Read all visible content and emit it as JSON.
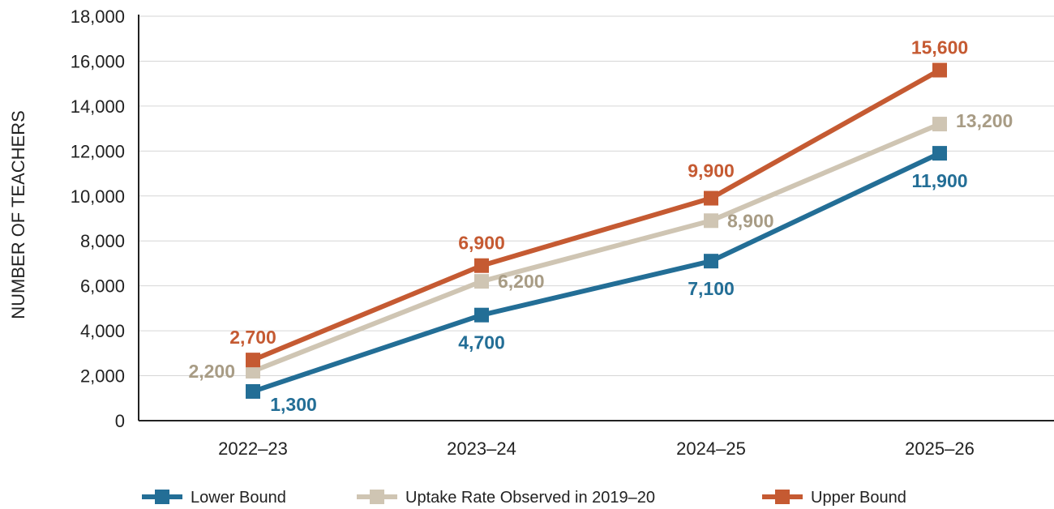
{
  "chart_data": {
    "type": "line",
    "categories": [
      "2022–23",
      "2023–24",
      "2024–25",
      "2025–26"
    ],
    "ylabel": "NUMBER OF TEACHERS",
    "xlabel": "",
    "ylim": [
      0,
      18000
    ],
    "yticks": [
      0,
      2000,
      4000,
      6000,
      8000,
      10000,
      12000,
      14000,
      16000,
      18000
    ],
    "ytick_labels": [
      "0",
      "2,000",
      "4,000",
      "6,000",
      "8,000",
      "10,000",
      "12,000",
      "14,000",
      "16,000",
      "18,000"
    ],
    "grid": true,
    "legend_position": "bottom",
    "series": [
      {
        "name": "Lower Bound",
        "color": "#236e96",
        "values": [
          1300,
          4700,
          7100,
          11900
        ],
        "labels": [
          "1,300",
          "4,700",
          "7,100",
          "11,900"
        ]
      },
      {
        "name": "Uptake Rate Observed in 2019–20",
        "color": "#cfc5b3",
        "label_color": "#a89c85",
        "values": [
          2200,
          6200,
          8900,
          13200
        ],
        "labels": [
          "2,200",
          "6,200",
          "8,900",
          "13,200"
        ]
      },
      {
        "name": "Upper Bound",
        "color": "#c55a32",
        "values": [
          2700,
          6900,
          9900,
          15600
        ],
        "labels": [
          "2,700",
          "6,900",
          "9,900",
          "15,600"
        ]
      }
    ]
  }
}
